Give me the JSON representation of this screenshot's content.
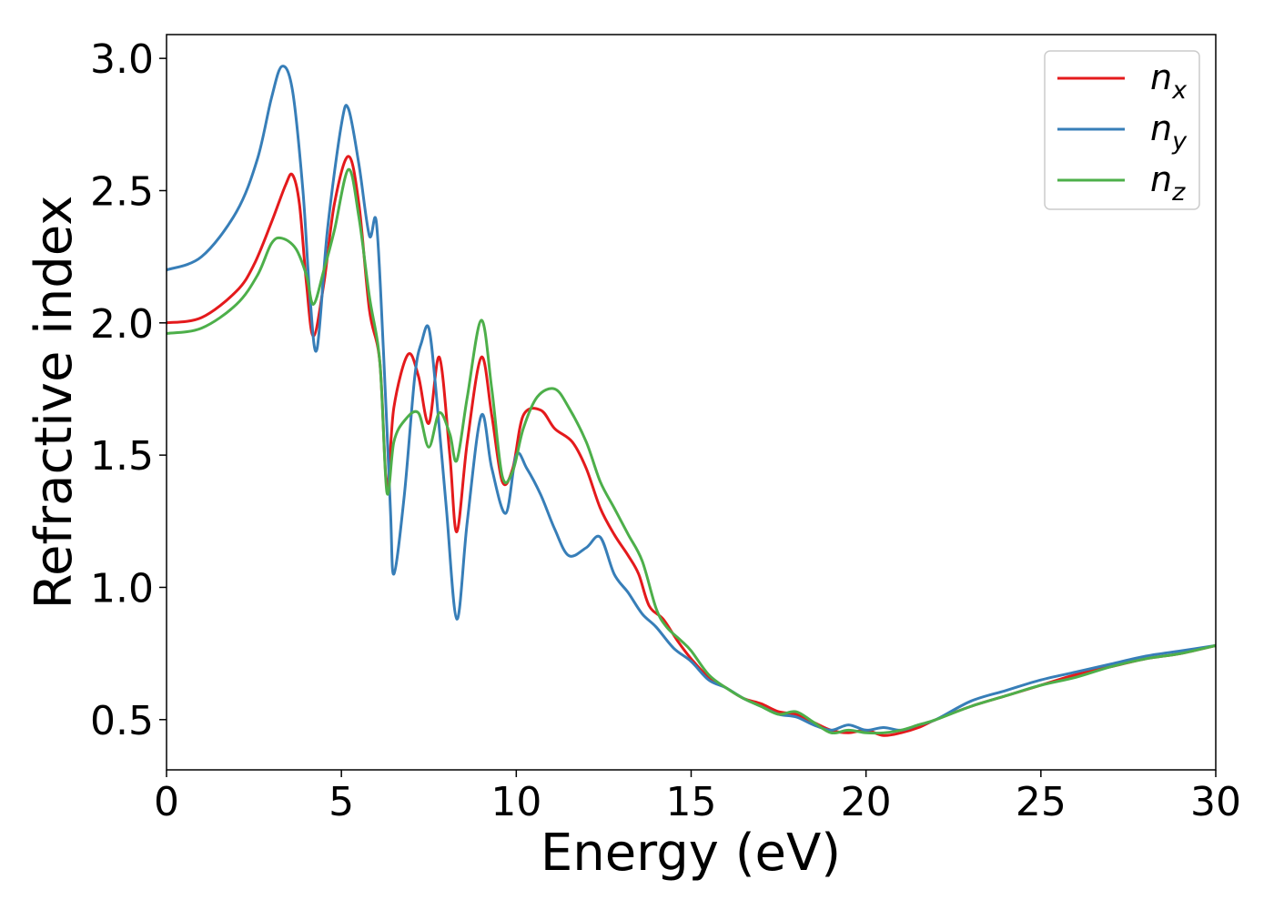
{
  "chart_data": {
    "type": "line",
    "title": "",
    "xlabel": "Energy (eV)",
    "ylabel": "Refractive index",
    "xlim": [
      0,
      30
    ],
    "ylim": [
      0.31,
      3.09
    ],
    "xticks": [
      0,
      5,
      10,
      15,
      20,
      25,
      30
    ],
    "xtick_labels": [
      "0",
      "5",
      "10",
      "15",
      "20",
      "25",
      "30"
    ],
    "yticks": [
      0.5,
      1.0,
      1.5,
      2.0,
      2.5,
      3.0
    ],
    "ytick_labels": [
      "0.5",
      "1.0",
      "1.5",
      "2.0",
      "2.5",
      "3.0"
    ],
    "grid": false,
    "legend_position": "top-right",
    "series": [
      {
        "name": "n",
        "subscript": "x",
        "color": "#e41a1c",
        "points": [
          [
            0,
            2.0
          ],
          [
            1,
            2.02
          ],
          [
            2,
            2.12
          ],
          [
            2.5,
            2.22
          ],
          [
            3.0,
            2.38
          ],
          [
            3.4,
            2.52
          ],
          [
            3.6,
            2.56
          ],
          [
            3.8,
            2.45
          ],
          [
            4.0,
            2.15
          ],
          [
            4.2,
            1.95
          ],
          [
            4.5,
            2.15
          ],
          [
            4.8,
            2.45
          ],
          [
            5.2,
            2.63
          ],
          [
            5.5,
            2.45
          ],
          [
            5.8,
            2.05
          ],
          [
            6.1,
            1.85
          ],
          [
            6.3,
            1.38
          ],
          [
            6.5,
            1.68
          ],
          [
            6.9,
            1.88
          ],
          [
            7.2,
            1.8
          ],
          [
            7.5,
            1.62
          ],
          [
            7.8,
            1.87
          ],
          [
            8.1,
            1.5
          ],
          [
            8.3,
            1.21
          ],
          [
            8.6,
            1.55
          ],
          [
            9.0,
            1.87
          ],
          [
            9.3,
            1.65
          ],
          [
            9.6,
            1.4
          ],
          [
            9.9,
            1.45
          ],
          [
            10.2,
            1.65
          ],
          [
            10.7,
            1.67
          ],
          [
            11.1,
            1.6
          ],
          [
            11.6,
            1.55
          ],
          [
            12.0,
            1.45
          ],
          [
            12.4,
            1.3
          ],
          [
            12.8,
            1.2
          ],
          [
            13.2,
            1.12
          ],
          [
            13.5,
            1.05
          ],
          [
            13.8,
            0.93
          ],
          [
            14.2,
            0.88
          ],
          [
            14.6,
            0.8
          ],
          [
            15.0,
            0.73
          ],
          [
            15.5,
            0.66
          ],
          [
            16.0,
            0.62
          ],
          [
            16.5,
            0.58
          ],
          [
            17.0,
            0.56
          ],
          [
            17.5,
            0.53
          ],
          [
            18.0,
            0.52
          ],
          [
            18.5,
            0.49
          ],
          [
            19.0,
            0.46
          ],
          [
            19.5,
            0.45
          ],
          [
            20.0,
            0.46
          ],
          [
            20.5,
            0.44
          ],
          [
            21.0,
            0.45
          ],
          [
            21.5,
            0.47
          ],
          [
            22.0,
            0.5
          ],
          [
            23.0,
            0.55
          ],
          [
            24.0,
            0.59
          ],
          [
            25.0,
            0.63
          ],
          [
            26.0,
            0.67
          ],
          [
            27.0,
            0.7
          ],
          [
            28.0,
            0.73
          ],
          [
            29.0,
            0.75
          ],
          [
            30.0,
            0.78
          ]
        ]
      },
      {
        "name": "n",
        "subscript": "y",
        "color": "#377eb8",
        "points": [
          [
            0,
            2.2
          ],
          [
            1,
            2.25
          ],
          [
            2,
            2.42
          ],
          [
            2.6,
            2.62
          ],
          [
            3.0,
            2.85
          ],
          [
            3.3,
            2.97
          ],
          [
            3.6,
            2.88
          ],
          [
            3.9,
            2.5
          ],
          [
            4.1,
            2.1
          ],
          [
            4.3,
            1.9
          ],
          [
            4.6,
            2.35
          ],
          [
            5.0,
            2.75
          ],
          [
            5.2,
            2.81
          ],
          [
            5.5,
            2.6
          ],
          [
            5.8,
            2.33
          ],
          [
            6.0,
            2.38
          ],
          [
            6.2,
            1.9
          ],
          [
            6.4,
            1.3
          ],
          [
            6.5,
            1.05
          ],
          [
            6.8,
            1.35
          ],
          [
            7.1,
            1.8
          ],
          [
            7.3,
            1.93
          ],
          [
            7.5,
            1.98
          ],
          [
            7.7,
            1.75
          ],
          [
            8.0,
            1.3
          ],
          [
            8.3,
            0.88
          ],
          [
            8.6,
            1.25
          ],
          [
            9.0,
            1.65
          ],
          [
            9.3,
            1.45
          ],
          [
            9.7,
            1.28
          ],
          [
            10.0,
            1.5
          ],
          [
            10.3,
            1.45
          ],
          [
            10.7,
            1.35
          ],
          [
            11.1,
            1.22
          ],
          [
            11.5,
            1.12
          ],
          [
            12.0,
            1.15
          ],
          [
            12.4,
            1.19
          ],
          [
            12.8,
            1.05
          ],
          [
            13.2,
            0.98
          ],
          [
            13.6,
            0.9
          ],
          [
            14.0,
            0.85
          ],
          [
            14.5,
            0.77
          ],
          [
            15.0,
            0.72
          ],
          [
            15.5,
            0.65
          ],
          [
            16.0,
            0.62
          ],
          [
            16.5,
            0.58
          ],
          [
            17.0,
            0.55
          ],
          [
            17.5,
            0.52
          ],
          [
            18.0,
            0.51
          ],
          [
            18.5,
            0.48
          ],
          [
            19.0,
            0.46
          ],
          [
            19.5,
            0.48
          ],
          [
            20.0,
            0.46
          ],
          [
            20.5,
            0.47
          ],
          [
            21.0,
            0.46
          ],
          [
            21.5,
            0.48
          ],
          [
            22.0,
            0.5
          ],
          [
            23.0,
            0.57
          ],
          [
            24.0,
            0.61
          ],
          [
            25.0,
            0.65
          ],
          [
            26.0,
            0.68
          ],
          [
            27.0,
            0.71
          ],
          [
            28.0,
            0.74
          ],
          [
            29.0,
            0.76
          ],
          [
            30.0,
            0.78
          ]
        ]
      },
      {
        "name": "n",
        "subscript": "z",
        "color": "#4daf4a",
        "points": [
          [
            0,
            1.96
          ],
          [
            1,
            1.98
          ],
          [
            2,
            2.07
          ],
          [
            2.6,
            2.18
          ],
          [
            3.0,
            2.3
          ],
          [
            3.3,
            2.32
          ],
          [
            3.7,
            2.28
          ],
          [
            4.0,
            2.18
          ],
          [
            4.2,
            2.07
          ],
          [
            4.5,
            2.2
          ],
          [
            4.8,
            2.35
          ],
          [
            5.2,
            2.58
          ],
          [
            5.5,
            2.4
          ],
          [
            5.8,
            2.1
          ],
          [
            6.1,
            1.85
          ],
          [
            6.3,
            1.36
          ],
          [
            6.5,
            1.55
          ],
          [
            6.8,
            1.63
          ],
          [
            7.2,
            1.66
          ],
          [
            7.5,
            1.53
          ],
          [
            7.8,
            1.66
          ],
          [
            8.1,
            1.58
          ],
          [
            8.3,
            1.48
          ],
          [
            8.6,
            1.72
          ],
          [
            9.0,
            2.01
          ],
          [
            9.3,
            1.75
          ],
          [
            9.6,
            1.42
          ],
          [
            9.9,
            1.44
          ],
          [
            10.2,
            1.6
          ],
          [
            10.6,
            1.72
          ],
          [
            11.1,
            1.75
          ],
          [
            11.5,
            1.68
          ],
          [
            12.0,
            1.55
          ],
          [
            12.4,
            1.4
          ],
          [
            12.8,
            1.3
          ],
          [
            13.2,
            1.2
          ],
          [
            13.6,
            1.1
          ],
          [
            14.0,
            0.92
          ],
          [
            14.3,
            0.85
          ],
          [
            14.7,
            0.8
          ],
          [
            15.0,
            0.76
          ],
          [
            15.5,
            0.67
          ],
          [
            16.0,
            0.62
          ],
          [
            16.5,
            0.58
          ],
          [
            17.0,
            0.55
          ],
          [
            17.5,
            0.52
          ],
          [
            18.0,
            0.53
          ],
          [
            18.5,
            0.49
          ],
          [
            19.0,
            0.45
          ],
          [
            19.5,
            0.46
          ],
          [
            20.0,
            0.45
          ],
          [
            20.5,
            0.45
          ],
          [
            21.0,
            0.46
          ],
          [
            21.5,
            0.48
          ],
          [
            22.0,
            0.5
          ],
          [
            23.0,
            0.55
          ],
          [
            24.0,
            0.59
          ],
          [
            25.0,
            0.63
          ],
          [
            26.0,
            0.66
          ],
          [
            27.0,
            0.7
          ],
          [
            28.0,
            0.73
          ],
          [
            29.0,
            0.75
          ],
          [
            30.0,
            0.78
          ]
        ]
      }
    ]
  }
}
